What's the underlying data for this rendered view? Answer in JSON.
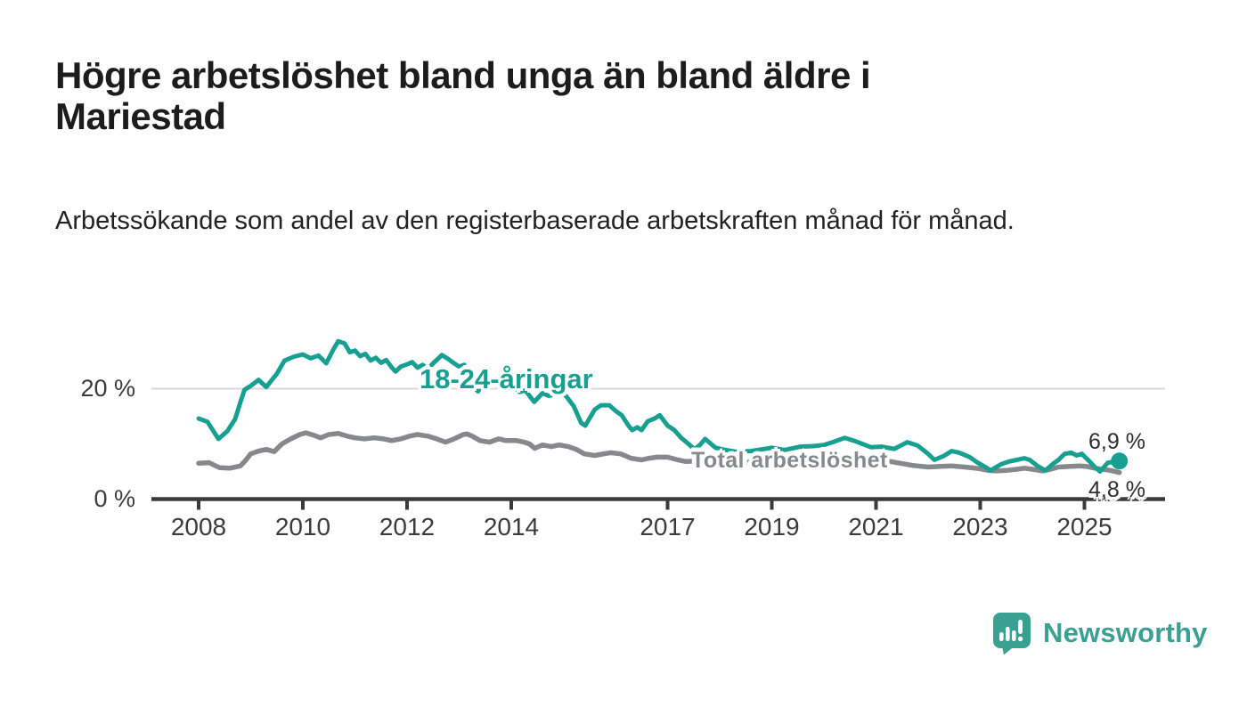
{
  "title": "Högre arbetslöshet bland unga än bland äldre i Mariestad",
  "subtitle": "Arbetssökande som andel av den registerbaserade arbetskraften månad för månad.",
  "logo": {
    "name": "Newsworthy"
  },
  "colors": {
    "youth": "#17a091",
    "total": "#86888b",
    "axis": "#3b3b3b",
    "grid": "#d8d8d8",
    "logo": "#3aa092"
  },
  "chart_data": {
    "type": "line",
    "x_unit": "decimal_year",
    "y_unit": "percent",
    "ylim": [
      0,
      29
    ],
    "grid": "y-at-20-only",
    "x_ticks": [
      {
        "year": 2008,
        "label": "2008"
      },
      {
        "year": 2010,
        "label": "2010"
      },
      {
        "year": 2012,
        "label": "2012"
      },
      {
        "year": 2014,
        "label": "2014"
      },
      {
        "year": 2017,
        "label": "2017"
      },
      {
        "year": 2019,
        "label": "2019"
      },
      {
        "year": 2021,
        "label": "2021"
      },
      {
        "year": 2023,
        "label": "2023"
      },
      {
        "year": 2025,
        "label": "2025"
      }
    ],
    "y_ticks": [
      {
        "value": 0,
        "label": "0 %"
      },
      {
        "value": 20,
        "label": "20 %"
      }
    ],
    "series": [
      {
        "name": "total",
        "label": "Total arbetslöshet",
        "color_key": "total",
        "end_label": "4,8 %",
        "end_dot": false,
        "points": [
          [
            2008.0,
            6.5
          ],
          [
            2008.2,
            6.6
          ],
          [
            2008.4,
            5.7
          ],
          [
            2008.6,
            5.6
          ],
          [
            2008.8,
            6.0
          ],
          [
            2008.9,
            7.0
          ],
          [
            2009.0,
            8.2
          ],
          [
            2009.15,
            8.7
          ],
          [
            2009.3,
            9.0
          ],
          [
            2009.45,
            8.6
          ],
          [
            2009.6,
            10.0
          ],
          [
            2009.77,
            10.9
          ],
          [
            2009.94,
            11.7
          ],
          [
            2010.06,
            12.0
          ],
          [
            2010.2,
            11.6
          ],
          [
            2010.34,
            11.1
          ],
          [
            2010.5,
            11.7
          ],
          [
            2010.68,
            11.9
          ],
          [
            2010.85,
            11.4
          ],
          [
            2011.0,
            11.1
          ],
          [
            2011.18,
            10.9
          ],
          [
            2011.37,
            11.1
          ],
          [
            2011.55,
            10.9
          ],
          [
            2011.7,
            10.6
          ],
          [
            2011.88,
            10.9
          ],
          [
            2012.05,
            11.4
          ],
          [
            2012.2,
            11.7
          ],
          [
            2012.4,
            11.4
          ],
          [
            2012.57,
            10.9
          ],
          [
            2012.74,
            10.3
          ],
          [
            2012.9,
            10.9
          ],
          [
            2013.08,
            11.7
          ],
          [
            2013.15,
            11.8
          ],
          [
            2013.25,
            11.4
          ],
          [
            2013.4,
            10.6
          ],
          [
            2013.58,
            10.3
          ],
          [
            2013.76,
            10.9
          ],
          [
            2013.9,
            10.6
          ],
          [
            2014.1,
            10.6
          ],
          [
            2014.25,
            10.3
          ],
          [
            2014.35,
            10.0
          ],
          [
            2014.45,
            9.2
          ],
          [
            2014.6,
            9.8
          ],
          [
            2014.77,
            9.5
          ],
          [
            2014.92,
            9.8
          ],
          [
            2015.1,
            9.5
          ],
          [
            2015.25,
            9.0
          ],
          [
            2015.4,
            8.2
          ],
          [
            2015.6,
            7.9
          ],
          [
            2015.9,
            8.4
          ],
          [
            2016.1,
            8.2
          ],
          [
            2016.3,
            7.4
          ],
          [
            2016.5,
            7.1
          ],
          [
            2016.65,
            7.4
          ],
          [
            2016.8,
            7.6
          ],
          [
            2017.0,
            7.6
          ],
          [
            2017.2,
            7.1
          ],
          [
            2017.35,
            6.8
          ],
          [
            2017.6,
            6.9
          ],
          [
            2017.9,
            7.1
          ],
          [
            2018.2,
            6.9
          ],
          [
            2018.5,
            6.7
          ],
          [
            2018.8,
            6.5
          ],
          [
            2019.1,
            6.5
          ],
          [
            2019.4,
            6.6
          ],
          [
            2019.7,
            6.7
          ],
          [
            2020.0,
            7.0
          ],
          [
            2020.3,
            7.6
          ],
          [
            2020.55,
            7.8
          ],
          [
            2020.8,
            7.6
          ],
          [
            2021.1,
            7.1
          ],
          [
            2021.4,
            6.6
          ],
          [
            2021.7,
            6.1
          ],
          [
            2022.0,
            5.8
          ],
          [
            2022.2,
            5.9
          ],
          [
            2022.45,
            6.0
          ],
          [
            2022.7,
            5.8
          ],
          [
            2023.0,
            5.5
          ],
          [
            2023.15,
            5.2
          ],
          [
            2023.3,
            5.1
          ],
          [
            2023.5,
            5.2
          ],
          [
            2023.7,
            5.4
          ],
          [
            2023.85,
            5.6
          ],
          [
            2024.0,
            5.4
          ],
          [
            2024.2,
            5.1
          ],
          [
            2024.35,
            5.4
          ],
          [
            2024.5,
            5.8
          ],
          [
            2024.7,
            5.9
          ],
          [
            2024.9,
            6.0
          ],
          [
            2025.05,
            5.9
          ],
          [
            2025.2,
            5.6
          ],
          [
            2025.35,
            5.4
          ],
          [
            2025.5,
            5.2
          ],
          [
            2025.67,
            4.8
          ]
        ]
      },
      {
        "name": "youth",
        "label": "18-24-åringar",
        "color_key": "youth",
        "end_label": "6,9 %",
        "end_dot": true,
        "points": [
          [
            2008.0,
            14.6
          ],
          [
            2008.17,
            14.0
          ],
          [
            2008.38,
            10.9
          ],
          [
            2008.55,
            12.3
          ],
          [
            2008.7,
            14.5
          ],
          [
            2008.8,
            17.5
          ],
          [
            2008.88,
            19.8
          ],
          [
            2009.0,
            20.5
          ],
          [
            2009.15,
            21.6
          ],
          [
            2009.3,
            20.3
          ],
          [
            2009.5,
            22.7
          ],
          [
            2009.65,
            25.1
          ],
          [
            2009.83,
            25.8
          ],
          [
            2010.0,
            26.2
          ],
          [
            2010.15,
            25.5
          ],
          [
            2010.3,
            26.0
          ],
          [
            2010.45,
            24.6
          ],
          [
            2010.58,
            27.0
          ],
          [
            2010.68,
            28.6
          ],
          [
            2010.8,
            28.2
          ],
          [
            2010.9,
            26.6
          ],
          [
            2011.0,
            26.9
          ],
          [
            2011.1,
            25.9
          ],
          [
            2011.2,
            26.3
          ],
          [
            2011.3,
            25.1
          ],
          [
            2011.4,
            25.6
          ],
          [
            2011.5,
            24.7
          ],
          [
            2011.6,
            25.2
          ],
          [
            2011.7,
            23.9
          ],
          [
            2011.78,
            23.1
          ],
          [
            2011.88,
            24.0
          ],
          [
            2012.0,
            24.4
          ],
          [
            2012.1,
            24.8
          ],
          [
            2012.2,
            23.8
          ],
          [
            2012.3,
            24.3
          ],
          [
            2012.4,
            23.5
          ],
          [
            2012.5,
            24.6
          ],
          [
            2012.67,
            26.1
          ],
          [
            2012.8,
            25.3
          ],
          [
            2012.9,
            24.6
          ],
          [
            2013.0,
            24.0
          ],
          [
            2013.1,
            24.3
          ],
          [
            2013.2,
            22.9
          ],
          [
            2013.28,
            20.3
          ],
          [
            2013.36,
            19.5
          ],
          [
            2013.45,
            21.1
          ],
          [
            2013.53,
            21.6
          ],
          [
            2013.65,
            20.8
          ],
          [
            2013.75,
            21.3
          ],
          [
            2013.85,
            20.2
          ],
          [
            2013.96,
            20.8
          ],
          [
            2014.05,
            20.3
          ],
          [
            2014.16,
            19.4
          ],
          [
            2014.27,
            19.7
          ],
          [
            2014.44,
            17.6
          ],
          [
            2014.6,
            19.2
          ],
          [
            2014.72,
            18.7
          ],
          [
            2014.85,
            19.0
          ],
          [
            2014.95,
            19.2
          ],
          [
            2015.05,
            18.7
          ],
          [
            2015.2,
            16.8
          ],
          [
            2015.34,
            13.8
          ],
          [
            2015.42,
            13.3
          ],
          [
            2015.6,
            16.2
          ],
          [
            2015.72,
            17.0
          ],
          [
            2015.88,
            17.0
          ],
          [
            2016.0,
            16.0
          ],
          [
            2016.12,
            15.2
          ],
          [
            2016.25,
            13.3
          ],
          [
            2016.32,
            12.5
          ],
          [
            2016.42,
            13.0
          ],
          [
            2016.5,
            12.5
          ],
          [
            2016.62,
            14.1
          ],
          [
            2016.75,
            14.6
          ],
          [
            2016.85,
            15.2
          ],
          [
            2017.0,
            13.3
          ],
          [
            2017.13,
            12.5
          ],
          [
            2017.26,
            11.1
          ],
          [
            2017.4,
            10.0
          ],
          [
            2017.52,
            9.0
          ],
          [
            2017.62,
            9.8
          ],
          [
            2017.72,
            10.9
          ],
          [
            2017.82,
            10.1
          ],
          [
            2017.92,
            9.3
          ],
          [
            2018.05,
            9.0
          ],
          [
            2018.3,
            8.6
          ],
          [
            2018.6,
            8.7
          ],
          [
            2018.8,
            9.0
          ],
          [
            2019.0,
            9.3
          ],
          [
            2019.25,
            8.9
          ],
          [
            2019.55,
            9.5
          ],
          [
            2019.8,
            9.6
          ],
          [
            2020.0,
            9.8
          ],
          [
            2020.2,
            10.4
          ],
          [
            2020.4,
            11.1
          ],
          [
            2020.6,
            10.5
          ],
          [
            2020.9,
            9.4
          ],
          [
            2021.1,
            9.5
          ],
          [
            2021.35,
            9.1
          ],
          [
            2021.6,
            10.3
          ],
          [
            2021.8,
            9.7
          ],
          [
            2022.0,
            8.2
          ],
          [
            2022.12,
            7.1
          ],
          [
            2022.3,
            7.8
          ],
          [
            2022.45,
            8.7
          ],
          [
            2022.6,
            8.4
          ],
          [
            2022.8,
            7.6
          ],
          [
            2022.95,
            6.6
          ],
          [
            2023.1,
            5.8
          ],
          [
            2023.2,
            5.2
          ],
          [
            2023.4,
            6.3
          ],
          [
            2023.55,
            6.8
          ],
          [
            2023.7,
            7.1
          ],
          [
            2023.85,
            7.4
          ],
          [
            2023.95,
            7.1
          ],
          [
            2024.1,
            6.0
          ],
          [
            2024.25,
            5.2
          ],
          [
            2024.4,
            6.4
          ],
          [
            2024.5,
            7.1
          ],
          [
            2024.62,
            8.2
          ],
          [
            2024.75,
            8.4
          ],
          [
            2024.85,
            7.9
          ],
          [
            2024.95,
            8.2
          ],
          [
            2025.1,
            6.8
          ],
          [
            2025.2,
            5.8
          ],
          [
            2025.3,
            5.0
          ],
          [
            2025.45,
            6.6
          ],
          [
            2025.67,
            6.9
          ]
        ]
      }
    ]
  }
}
